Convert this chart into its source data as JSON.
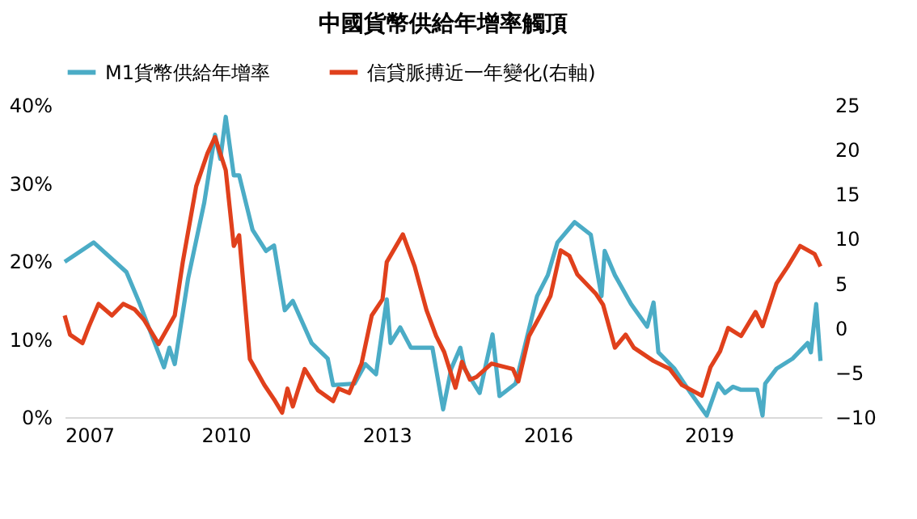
{
  "chart_data": {
    "type": "line",
    "title": "中國貨幣供給年增率觸頂",
    "legend": "top",
    "grid": false,
    "line_style": "solid",
    "marker": "none",
    "xlim": [
      2007,
      2021.1
    ],
    "xticks": [
      2007,
      2010,
      2013,
      2016,
      2019
    ],
    "ylim": [
      0,
      40
    ],
    "yticks": [
      {
        "value": 0,
        "label": "0%"
      },
      {
        "value": 10,
        "label": "10%"
      },
      {
        "value": 20,
        "label": "20%"
      },
      {
        "value": 30,
        "label": "30%"
      },
      {
        "value": 40,
        "label": "40%"
      }
    ],
    "y2lim": [
      -10,
      25
    ],
    "y2ticks": [
      -10,
      -5,
      0,
      5,
      10,
      15,
      20,
      25
    ],
    "series": [
      {
        "name": "M1貨幣供給年增率",
        "color": "#4bacc6",
        "x": [
          2007.0,
          2007.54,
          2008.15,
          2008.4,
          2008.85,
          2008.95,
          2009.05,
          2009.3,
          2009.6,
          2009.8,
          2009.9,
          2010.0,
          2010.15,
          2010.25,
          2010.5,
          2010.75,
          2010.9,
          2011.1,
          2011.25,
          2011.6,
          2011.9,
          2012.0,
          2012.4,
          2012.6,
          2012.8,
          2013.0,
          2013.07,
          2013.25,
          2013.45,
          2013.85,
          2014.05,
          2014.2,
          2014.37,
          2014.45,
          2014.73,
          2014.97,
          2015.1,
          2015.4,
          2015.8,
          2016.0,
          2016.18,
          2016.5,
          2016.8,
          2017.0,
          2017.06,
          2017.25,
          2017.55,
          2017.85,
          2017.97,
          2018.06,
          2018.36,
          2018.66,
          2018.96,
          2019.17,
          2019.3,
          2019.45,
          2019.6,
          2019.9,
          2020.0,
          2020.05,
          2020.26,
          2020.56,
          2020.84,
          2020.9,
          2021.0,
          2021.08
        ],
        "values": [
          19.9,
          22.4,
          18.6,
          14.5,
          6.4,
          8.9,
          6.8,
          17.8,
          27.5,
          36.2,
          33.1,
          38.5,
          31.0,
          31.0,
          24.0,
          21.3,
          22.0,
          13.7,
          14.9,
          9.5,
          7.5,
          4.1,
          4.3,
          6.8,
          5.5,
          15.1,
          9.5,
          11.5,
          8.9,
          8.9,
          1.0,
          6.2,
          8.9,
          6.2,
          3.1,
          10.6,
          2.7,
          4.3,
          15.5,
          18.2,
          22.4,
          25.0,
          23.4,
          15.5,
          21.3,
          18.2,
          14.5,
          11.6,
          14.7,
          8.3,
          6.2,
          3.1,
          0.2,
          4.3,
          3.1,
          3.9,
          3.5,
          3.5,
          0.2,
          4.3,
          6.2,
          7.5,
          9.5,
          8.3,
          14.5,
          7.2
        ]
      },
      {
        "name": "信貸脈搏近一年變化(右軸)",
        "color": "#e0401c",
        "axis": "y2",
        "x": [
          2007.0,
          2007.1,
          2007.33,
          2007.45,
          2007.63,
          2007.88,
          2008.09,
          2008.3,
          2008.48,
          2008.75,
          2009.05,
          2009.2,
          2009.45,
          2009.66,
          2009.8,
          2010.0,
          2010.15,
          2010.25,
          2010.45,
          2010.72,
          2010.9,
          2011.05,
          2011.15,
          2011.25,
          2011.47,
          2011.72,
          2012.0,
          2012.1,
          2012.3,
          2012.53,
          2012.72,
          2012.92,
          2013.0,
          2013.3,
          2013.52,
          2013.74,
          2013.92,
          2014.07,
          2014.28,
          2014.4,
          2014.55,
          2014.67,
          2014.95,
          2015.35,
          2015.45,
          2015.65,
          2015.86,
          2016.05,
          2016.24,
          2016.4,
          2016.55,
          2016.9,
          2017.03,
          2017.25,
          2017.45,
          2017.6,
          2017.97,
          2018.27,
          2018.5,
          2018.87,
          2019.03,
          2019.21,
          2019.36,
          2019.6,
          2019.87,
          2020.0,
          2020.26,
          2020.47,
          2020.7,
          2020.97,
          2021.08
        ],
        "values": [
          1.4,
          -0.75,
          -1.7,
          0.15,
          2.7,
          1.4,
          2.7,
          2.1,
          0.9,
          -1.8,
          1.4,
          7.4,
          15.9,
          19.6,
          21.4,
          17.7,
          9.2,
          10.4,
          -3.5,
          -6.4,
          -8.0,
          -9.5,
          -6.8,
          -8.8,
          -4.6,
          -7.0,
          -8.2,
          -6.8,
          -7.3,
          -4.0,
          1.4,
          3.2,
          7.4,
          10.5,
          6.9,
          2.0,
          -0.9,
          -2.7,
          -6.7,
          -3.8,
          -5.8,
          -5.5,
          -4.0,
          -4.6,
          -6.0,
          -0.9,
          1.4,
          3.6,
          8.7,
          8.1,
          6.0,
          3.8,
          2.6,
          -2.2,
          -0.75,
          -2.2,
          -3.7,
          -4.6,
          -6.4,
          -7.6,
          -4.4,
          -2.6,
          0.0,
          -0.9,
          1.8,
          0.2,
          5.0,
          6.9,
          9.2,
          8.3,
          6.9
        ]
      }
    ]
  }
}
